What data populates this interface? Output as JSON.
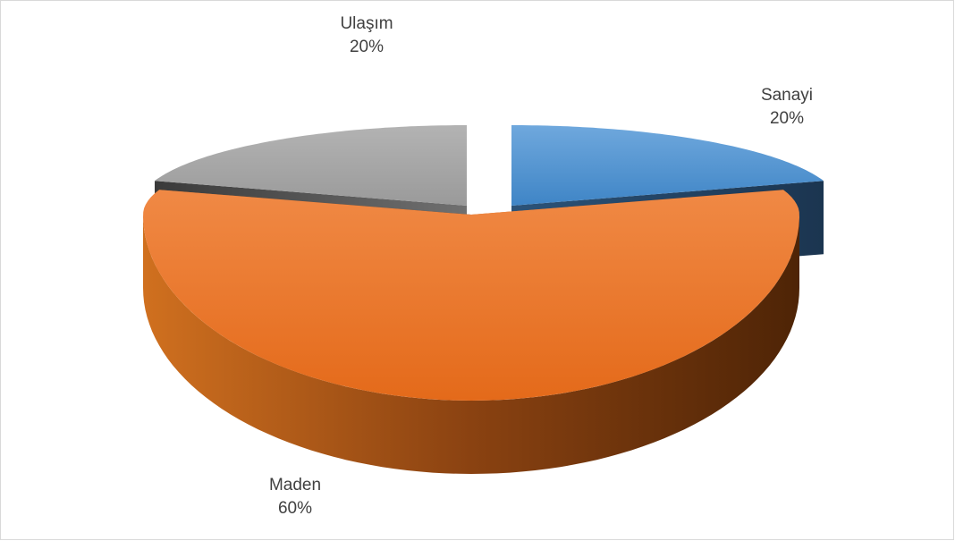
{
  "chart_data": {
    "type": "pie",
    "categories": [
      "Sanayi",
      "Maden",
      "Ulaşım"
    ],
    "values": [
      20,
      60,
      20
    ],
    "value_labels": [
      "20%",
      "60%",
      "20%"
    ],
    "colors": [
      "#5b9bd5",
      "#ed7d31",
      "#a5a5a5"
    ]
  }
}
